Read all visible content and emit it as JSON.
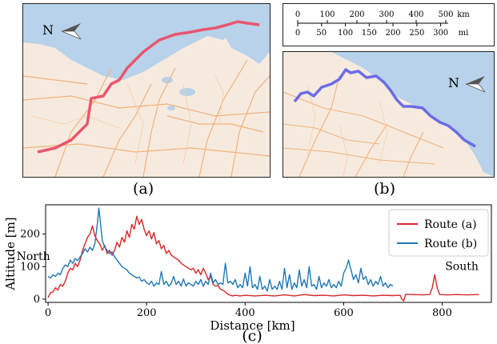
{
  "maps": {
    "a": {
      "north_label": "N",
      "panel_label": "(a)",
      "route_color": "#e8566e"
    },
    "b": {
      "north_label": "N",
      "panel_label": "(b)",
      "route_color": "#6c6ce6"
    }
  },
  "scale_bar": {
    "km_ticks": [
      "0",
      "100",
      "200",
      "300",
      "400",
      "500"
    ],
    "km_unit": "km",
    "mi_ticks": [
      "0",
      "50",
      "100",
      "150",
      "200",
      "250",
      "300"
    ],
    "mi_unit": "mi"
  },
  "chart_data": {
    "type": "line",
    "panel_label": "(c)",
    "xlabel": "Distance [km]",
    "ylabel": "Altitude [m]",
    "xlim": [
      -5,
      900
    ],
    "ylim": [
      -10,
      290
    ],
    "xticks": [
      0,
      200,
      400,
      600,
      800
    ],
    "yticks": [
      0,
      100,
      200
    ],
    "legend": {
      "position": "top-right"
    },
    "annotations": [
      {
        "text": "North",
        "x": -30,
        "y": 120
      },
      {
        "text": "South",
        "x": 840,
        "y": 90
      }
    ],
    "series": [
      {
        "name": "Route (a)",
        "color": "#d62728",
        "points": [
          [
            0,
            5
          ],
          [
            5,
            20
          ],
          [
            10,
            22
          ],
          [
            15,
            35
          ],
          [
            20,
            28
          ],
          [
            25,
            45
          ],
          [
            30,
            40
          ],
          [
            35,
            55
          ],
          [
            40,
            80
          ],
          [
            45,
            95
          ],
          [
            50,
            90
          ],
          [
            55,
            110
          ],
          [
            60,
            100
          ],
          [
            65,
            120
          ],
          [
            70,
            150
          ],
          [
            75,
            170
          ],
          [
            80,
            190
          ],
          [
            85,
            200
          ],
          [
            90,
            225
          ],
          [
            95,
            195
          ],
          [
            100,
            180
          ],
          [
            105,
            170
          ],
          [
            110,
            150
          ],
          [
            115,
            165
          ],
          [
            120,
            140
          ],
          [
            125,
            150
          ],
          [
            130,
            135
          ],
          [
            135,
            150
          ],
          [
            140,
            175
          ],
          [
            145,
            160
          ],
          [
            150,
            190
          ],
          [
            155,
            175
          ],
          [
            160,
            210
          ],
          [
            165,
            190
          ],
          [
            170,
            230
          ],
          [
            175,
            215
          ],
          [
            180,
            255
          ],
          [
            185,
            230
          ],
          [
            190,
            245
          ],
          [
            195,
            215
          ],
          [
            200,
            195
          ],
          [
            205,
            210
          ],
          [
            210,
            185
          ],
          [
            215,
            205
          ],
          [
            220,
            170
          ],
          [
            225,
            180
          ],
          [
            230,
            155
          ],
          [
            235,
            165
          ],
          [
            240,
            140
          ],
          [
            245,
            150
          ],
          [
            250,
            135
          ],
          [
            255,
            130
          ],
          [
            260,
            125
          ],
          [
            265,
            120
          ],
          [
            270,
            110
          ],
          [
            275,
            105
          ],
          [
            280,
            100
          ],
          [
            285,
            95
          ],
          [
            290,
            90
          ],
          [
            295,
            95
          ],
          [
            300,
            80
          ],
          [
            305,
            90
          ],
          [
            310,
            75
          ],
          [
            315,
            95
          ],
          [
            320,
            80
          ],
          [
            325,
            60
          ],
          [
            330,
            72
          ],
          [
            335,
            45
          ],
          [
            340,
            40
          ],
          [
            345,
            42
          ],
          [
            350,
            30
          ],
          [
            355,
            28
          ],
          [
            360,
            22
          ],
          [
            365,
            15
          ],
          [
            370,
            12
          ],
          [
            375,
            10
          ],
          [
            380,
            12
          ],
          [
            390,
            10
          ],
          [
            400,
            12
          ],
          [
            420,
            10
          ],
          [
            440,
            12
          ],
          [
            460,
            10
          ],
          [
            480,
            13
          ],
          [
            500,
            10
          ],
          [
            520,
            14
          ],
          [
            540,
            11
          ],
          [
            560,
            12
          ],
          [
            580,
            10
          ],
          [
            600,
            13
          ],
          [
            620,
            11
          ],
          [
            640,
            12
          ],
          [
            660,
            10
          ],
          [
            680,
            12
          ],
          [
            700,
            11
          ],
          [
            715,
            12
          ],
          [
            718,
            0
          ],
          [
            722,
            -5
          ],
          [
            726,
            15
          ],
          [
            740,
            14
          ],
          [
            760,
            13
          ],
          [
            775,
            14
          ],
          [
            780,
            35
          ],
          [
            785,
            75
          ],
          [
            790,
            35
          ],
          [
            795,
            14
          ],
          [
            810,
            13
          ],
          [
            830,
            14
          ],
          [
            850,
            13
          ],
          [
            875,
            14
          ]
        ]
      },
      {
        "name": "Route (b)",
        "color": "#1f77b4",
        "points": [
          [
            0,
            70
          ],
          [
            5,
            65
          ],
          [
            10,
            75
          ],
          [
            15,
            70
          ],
          [
            20,
            80
          ],
          [
            25,
            75
          ],
          [
            30,
            95
          ],
          [
            35,
            105
          ],
          [
            40,
            100
          ],
          [
            45,
            120
          ],
          [
            50,
            110
          ],
          [
            55,
            125
          ],
          [
            60,
            118
          ],
          [
            65,
            130
          ],
          [
            70,
            140
          ],
          [
            75,
            155
          ],
          [
            80,
            145
          ],
          [
            85,
            160
          ],
          [
            90,
            150
          ],
          [
            95,
            170
          ],
          [
            100,
            230
          ],
          [
            103,
            280
          ],
          [
            106,
            240
          ],
          [
            110,
            180
          ],
          [
            115,
            160
          ],
          [
            120,
            150
          ],
          [
            125,
            140
          ],
          [
            130,
            145
          ],
          [
            135,
            130
          ],
          [
            140,
            120
          ],
          [
            145,
            110
          ],
          [
            150,
            100
          ],
          [
            155,
            95
          ],
          [
            160,
            90
          ],
          [
            165,
            80
          ],
          [
            170,
            75
          ],
          [
            175,
            70
          ],
          [
            180,
            65
          ],
          [
            185,
            68
          ],
          [
            190,
            55
          ],
          [
            195,
            60
          ],
          [
            200,
            50
          ],
          [
            205,
            45
          ],
          [
            210,
            55
          ],
          [
            215,
            40
          ],
          [
            220,
            50
          ],
          [
            225,
            45
          ],
          [
            230,
            85
          ],
          [
            235,
            45
          ],
          [
            240,
            55
          ],
          [
            245,
            40
          ],
          [
            250,
            48
          ],
          [
            255,
            70
          ],
          [
            260,
            45
          ],
          [
            265,
            55
          ],
          [
            270,
            40
          ],
          [
            275,
            62
          ],
          [
            280,
            40
          ],
          [
            285,
            50
          ],
          [
            290,
            45
          ],
          [
            295,
            40
          ],
          [
            300,
            55
          ],
          [
            305,
            45
          ],
          [
            310,
            60
          ],
          [
            315,
            40
          ],
          [
            320,
            55
          ],
          [
            325,
            45
          ],
          [
            330,
            80
          ],
          [
            335,
            50
          ],
          [
            340,
            60
          ],
          [
            345,
            45
          ],
          [
            350,
            50
          ],
          [
            355,
            45
          ],
          [
            360,
            110
          ],
          [
            365,
            50
          ],
          [
            370,
            55
          ],
          [
            375,
            45
          ],
          [
            380,
            60
          ],
          [
            385,
            35
          ],
          [
            390,
            45
          ],
          [
            395,
            35
          ],
          [
            400,
            80
          ],
          [
            405,
            40
          ],
          [
            410,
            100
          ],
          [
            415,
            35
          ],
          [
            420,
            45
          ],
          [
            425,
            30
          ],
          [
            430,
            70
          ],
          [
            435,
            30
          ],
          [
            440,
            40
          ],
          [
            445,
            25
          ],
          [
            450,
            60
          ],
          [
            455,
            30
          ],
          [
            460,
            40
          ],
          [
            465,
            30
          ],
          [
            470,
            55
          ],
          [
            475,
            30
          ],
          [
            480,
            95
          ],
          [
            485,
            35
          ],
          [
            490,
            75
          ],
          [
            495,
            30
          ],
          [
            500,
            50
          ],
          [
            505,
            35
          ],
          [
            510,
            90
          ],
          [
            515,
            40
          ],
          [
            520,
            60
          ],
          [
            525,
            35
          ],
          [
            530,
            100
          ],
          [
            535,
            40
          ],
          [
            540,
            45
          ],
          [
            545,
            30
          ],
          [
            550,
            70
          ],
          [
            555,
            35
          ],
          [
            560,
            50
          ],
          [
            565,
            40
          ],
          [
            570,
            60
          ],
          [
            575,
            35
          ],
          [
            580,
            45
          ],
          [
            585,
            35
          ],
          [
            590,
            55
          ],
          [
            595,
            40
          ],
          [
            600,
            80
          ],
          [
            605,
            95
          ],
          [
            610,
            120
          ],
          [
            615,
            90
          ],
          [
            620,
            60
          ],
          [
            625,
            75
          ],
          [
            630,
            50
          ],
          [
            635,
            95
          ],
          [
            640,
            60
          ],
          [
            645,
            70
          ],
          [
            650,
            45
          ],
          [
            655,
            60
          ],
          [
            660,
            40
          ],
          [
            665,
            55
          ],
          [
            670,
            45
          ],
          [
            675,
            70
          ],
          [
            680,
            40
          ],
          [
            685,
            50
          ],
          [
            690,
            35
          ],
          [
            695,
            45
          ],
          [
            700,
            40
          ]
        ]
      }
    ]
  }
}
